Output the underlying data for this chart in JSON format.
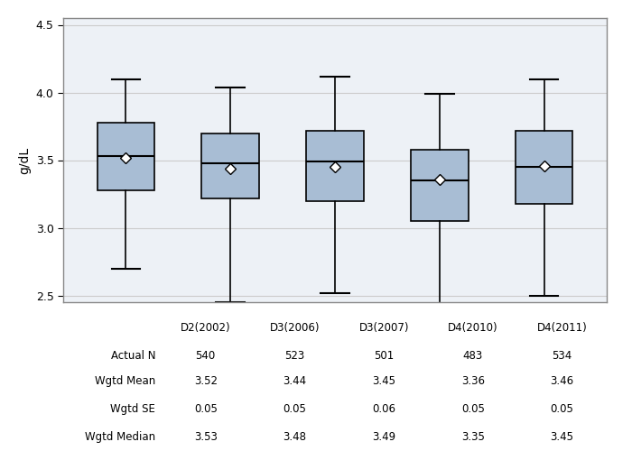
{
  "categories": [
    "D2(2002)",
    "D3(2006)",
    "D3(2007)",
    "D4(2010)",
    "D4(2011)"
  ],
  "actual_n": [
    540,
    523,
    501,
    483,
    534
  ],
  "wgtd_mean": [
    3.52,
    3.44,
    3.45,
    3.36,
    3.46
  ],
  "wgtd_se": [
    0.05,
    0.05,
    0.06,
    0.05,
    0.05
  ],
  "wgtd_median": [
    3.53,
    3.48,
    3.49,
    3.35,
    3.45
  ],
  "boxes": [
    {
      "whislo": 2.7,
      "q1": 3.28,
      "med": 3.53,
      "q3": 3.78,
      "whishi": 4.1,
      "mean": 3.52
    },
    {
      "whislo": 2.45,
      "q1": 3.22,
      "med": 3.48,
      "q3": 3.7,
      "whishi": 4.04,
      "mean": 3.44
    },
    {
      "whislo": 2.52,
      "q1": 3.2,
      "med": 3.49,
      "q3": 3.72,
      "whishi": 4.12,
      "mean": 3.45
    },
    {
      "whislo": 2.42,
      "q1": 3.05,
      "med": 3.35,
      "q3": 3.58,
      "whishi": 3.99,
      "mean": 3.36
    },
    {
      "whislo": 2.5,
      "q1": 3.18,
      "med": 3.45,
      "q3": 3.72,
      "whishi": 4.1,
      "mean": 3.46
    }
  ],
  "box_color": "#a8bdd4",
  "box_edge_color": "#000000",
  "whisker_color": "#000000",
  "median_color": "#000000",
  "mean_marker_color": "white",
  "mean_marker_edge_color": "#000000",
  "ylim": [
    2.45,
    4.55
  ],
  "yticks": [
    2.5,
    3.0,
    3.5,
    4.0,
    4.5
  ],
  "ylabel": "g/dL",
  "grid_color": "#cccccc",
  "background_color": "#ffffff",
  "plot_area_color": "#edf1f6",
  "table_labels": [
    "Actual N",
    "Wgtd Mean",
    "Wgtd SE",
    "Wgtd Median"
  ],
  "fig_width": 7.0,
  "fig_height": 5.0
}
